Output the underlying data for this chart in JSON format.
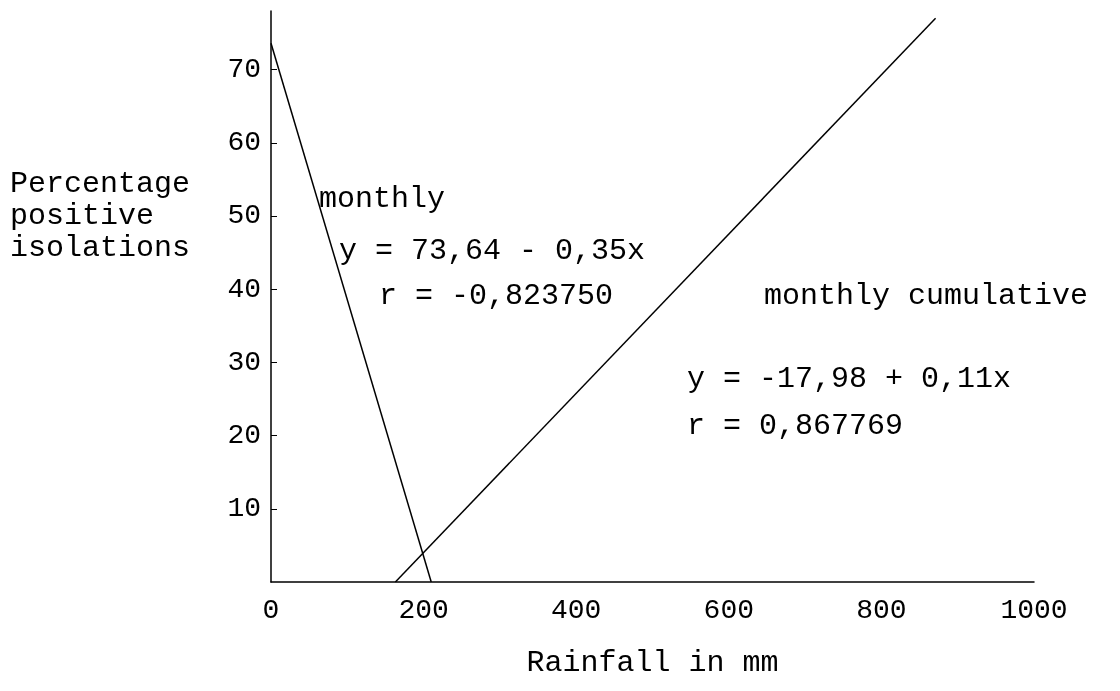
{
  "chart_data": {
    "type": "line",
    "xlabel": "Rainfall in mm",
    "ylabel": "Percentage positive isolations",
    "xlim": [
      0,
      1000
    ],
    "xticks": [
      0,
      200,
      400,
      600,
      800,
      1000
    ],
    "ylim": [
      0,
      78
    ],
    "yticks": [
      10,
      20,
      30,
      40,
      50,
      60,
      70
    ],
    "grid": false,
    "marker": "none",
    "line_style": "solid",
    "series": [
      {
        "color": "#000000",
        "x": [
          0,
          210
        ],
        "values": [
          73.6,
          0
        ]
      },
      {
        "color": "#000000",
        "x": [
          163,
          871
        ],
        "values": [
          0,
          77
        ]
      }
    ],
    "annotations": [
      "monthly",
      "y = 73,64 - 0,35x",
      "r = -0,823750",
      "monthly cumulative",
      "y = -17,98 + 0,11x",
      "r = 0,867769"
    ]
  }
}
